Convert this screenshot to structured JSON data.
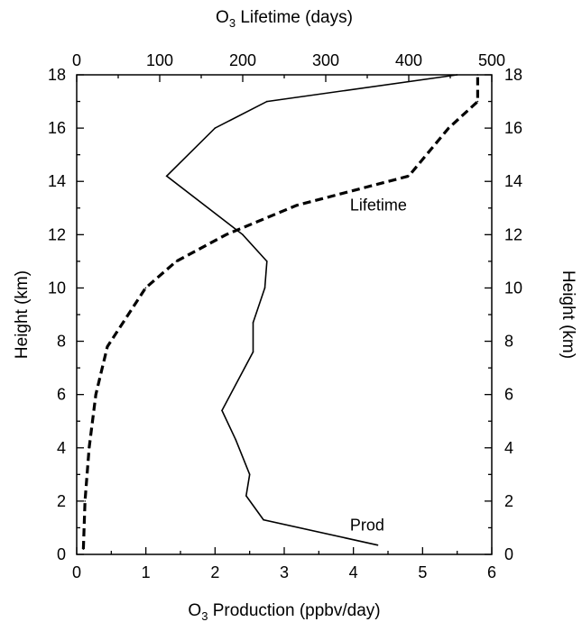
{
  "chart_data": {
    "type": "line",
    "title": "",
    "x_bottom": {
      "label_prefix": "O",
      "label_sub": "3",
      "label_suffix": " Production (ppbv/day)",
      "ticks": [
        "0",
        "1",
        "2",
        "3",
        "4",
        "5",
        "6"
      ],
      "range": [
        0,
        6
      ]
    },
    "x_top": {
      "label_prefix": "O",
      "label_sub": "3",
      "label_suffix": " Lifetime (days)",
      "ticks": [
        "0",
        "100",
        "200",
        "300",
        "400",
        "500"
      ],
      "range": [
        0,
        500
      ]
    },
    "y_left": {
      "label": "Height (km)",
      "ticks": [
        "0",
        "2",
        "4",
        "6",
        "8",
        "10",
        "12",
        "14",
        "16",
        "18"
      ],
      "range": [
        0,
        18
      ]
    },
    "y_right": {
      "label": "Height (km)",
      "ticks": [
        "0",
        "2",
        "4",
        "6",
        "8",
        "10",
        "12",
        "14",
        "16",
        "18"
      ],
      "range": [
        0,
        18
      ]
    },
    "series": [
      {
        "id": "production",
        "axis": "bottom",
        "style": "solid",
        "points": [
          {
            "x": 4.35,
            "y": 0.35
          },
          {
            "x": 2.7,
            "y": 1.3
          },
          {
            "x": 2.45,
            "y": 2.2
          },
          {
            "x": 2.5,
            "y": 3.0
          },
          {
            "x": 2.3,
            "y": 4.3
          },
          {
            "x": 2.1,
            "y": 5.4
          },
          {
            "x": 2.55,
            "y": 7.6
          },
          {
            "x": 2.55,
            "y": 8.7
          },
          {
            "x": 2.72,
            "y": 10.0
          },
          {
            "x": 2.75,
            "y": 11.0
          },
          {
            "x": 2.4,
            "y": 12.0
          },
          {
            "x": 1.3,
            "y": 14.2
          },
          {
            "x": 2.0,
            "y": 16.0
          },
          {
            "x": 2.75,
            "y": 17.0
          },
          {
            "x": 5.5,
            "y": 18.0
          }
        ]
      },
      {
        "id": "lifetime",
        "axis": "top",
        "style": "dashed",
        "points": [
          {
            "x": 8,
            "y": 0.2
          },
          {
            "x": 10,
            "y": 2.0
          },
          {
            "x": 15,
            "y": 4.0
          },
          {
            "x": 23,
            "y": 6.0
          },
          {
            "x": 37,
            "y": 7.8
          },
          {
            "x": 83,
            "y": 10.0
          },
          {
            "x": 120,
            "y": 11.0
          },
          {
            "x": 180,
            "y": 12.0
          },
          {
            "x": 265,
            "y": 13.1
          },
          {
            "x": 400,
            "y": 14.2
          },
          {
            "x": 448,
            "y": 16.0
          },
          {
            "x": 483,
            "y": 17.0
          },
          {
            "x": 483,
            "y": 18.0
          }
        ]
      }
    ],
    "annotations": [
      {
        "text": "Lifetime",
        "series": "lifetime",
        "x": 3.95,
        "y": 12.9
      },
      {
        "text": "Prod",
        "series": "production",
        "x": 3.95,
        "y": 0.9
      }
    ],
    "grid": false,
    "legend": "none"
  },
  "colors": {
    "line": "#000000",
    "background": "#ffffff"
  }
}
